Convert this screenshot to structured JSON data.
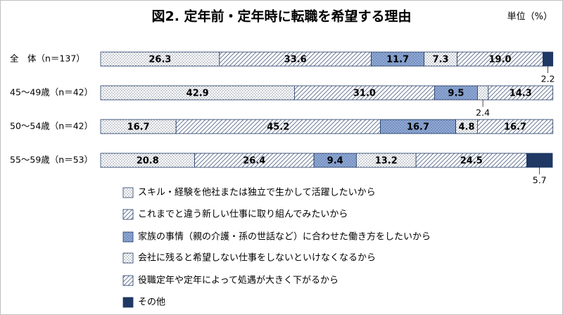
{
  "chart_data": {
    "type": "stacked_barh",
    "title": "図2. 定年前・定年時に転職を希望する理由",
    "unit_label": "単位（%）",
    "categories": [
      "全　体（n＝137）",
      "45～49歳（n＝42）",
      "50～54歳（n＝42）",
      "55～59歳（n＝53）"
    ],
    "xlim": [
      0,
      100
    ],
    "series": [
      {
        "name": "スキル・経験を他社または独立で生かして活躍したいから",
        "color": "#ffffff",
        "pattern": "dots",
        "values": [
          26.3,
          42.9,
          16.7,
          20.8
        ],
        "value_labels": [
          "26.3",
          "42.9",
          "16.7",
          "20.8"
        ]
      },
      {
        "name": "これまでと違う新しい仕事に取り組んでみたいから",
        "color": "#ffffff",
        "pattern": "hatch",
        "values": [
          33.6,
          31.0,
          45.2,
          26.4
        ],
        "value_labels": [
          "33.6",
          "31.0",
          "45.2",
          "26.4"
        ]
      },
      {
        "name": "家族の事情（親の介護・孫の世話など）に合わせた働き方をしたいから",
        "color": "#8eaadb",
        "pattern": "dots",
        "values": [
          11.7,
          9.5,
          16.7,
          9.4
        ],
        "value_labels": [
          "11.7",
          "9.5",
          "16.7",
          "9.4"
        ]
      },
      {
        "name": "会社に残ると希望しない仕事をしないといけなくなるから",
        "color": "#ffffff",
        "pattern": "dots",
        "values": [
          7.3,
          2.4,
          4.8,
          13.2
        ],
        "value_labels": [
          "7.3",
          "2.4",
          "4.8",
          "13.2"
        ]
      },
      {
        "name": "役職定年や定年によって処遇が大きく下がるから",
        "color": "#ffffff",
        "pattern": "hatch",
        "values": [
          19.0,
          14.3,
          16.7,
          24.5
        ],
        "value_labels": [
          "19.0",
          "14.3",
          "16.7",
          "24.5"
        ]
      },
      {
        "name": "その他",
        "color": "#1f3864",
        "pattern": "solid",
        "values": [
          2.2,
          null,
          null,
          5.7
        ],
        "value_labels": [
          "2.2",
          null,
          null,
          "5.7"
        ]
      }
    ]
  }
}
